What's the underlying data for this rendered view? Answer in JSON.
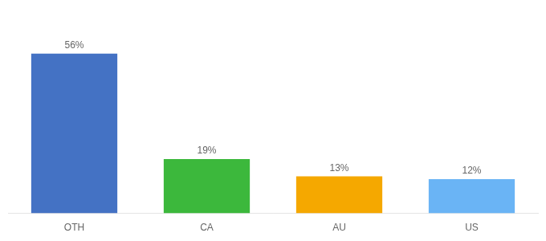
{
  "chart_data": {
    "type": "bar",
    "categories": [
      "OTH",
      "CA",
      "AU",
      "US"
    ],
    "values": [
      56,
      19,
      13,
      12
    ],
    "value_labels": [
      "56%",
      "19%",
      "13%",
      "12%"
    ],
    "colors": [
      "#4472c4",
      "#3cb83c",
      "#f5a800",
      "#6ab4f5"
    ],
    "ylim": [
      0,
      68
    ],
    "data_labels": true,
    "tick_labels": "x",
    "grid": false
  }
}
